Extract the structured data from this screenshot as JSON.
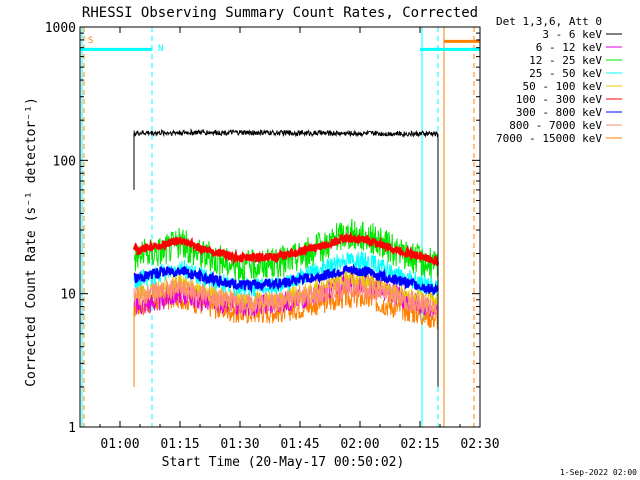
{
  "chart_data": {
    "type": "line",
    "title": "RHESSI Observing Summary Count Rates, Corrected",
    "xlabel": "Start Time (20-May-17 00:50:02)",
    "ylabel": "Corrected Count Rate (s⁻¹ detector⁻¹)",
    "yscale": "log",
    "ylim": [
      1,
      1000
    ],
    "xlim_minutes_from_start": [
      0,
      100
    ],
    "x_ticks": [
      {
        "label": "01:00",
        "minute": 10
      },
      {
        "label": "01:15",
        "minute": 25
      },
      {
        "label": "01:30",
        "minute": 40
      },
      {
        "label": "01:45",
        "minute": 55
      },
      {
        "label": "02:00",
        "minute": 70
      },
      {
        "label": "02:15",
        "minute": 85
      },
      {
        "label": "02:30",
        "minute": 100
      }
    ],
    "y_ticks": [
      {
        "label": "1",
        "value": 1
      },
      {
        "label": "10",
        "value": 10
      },
      {
        "label": "100",
        "value": 100
      },
      {
        "label": "1000",
        "value": 1000
      }
    ],
    "legend_header": "Det 1,3,6, Att 0",
    "legend_placement": "right",
    "series": [
      {
        "name": "3 - 6 keV",
        "color": "#000000",
        "x": [
          13.5,
          15,
          30,
          45,
          60,
          75,
          89.5
        ],
        "values": [
          160,
          160,
          162,
          161,
          160,
          159,
          158
        ]
      },
      {
        "name": "6 - 12 keV",
        "color": "#e100e1",
        "x": [
          13.5,
          20,
          25,
          30,
          40,
          50,
          60,
          66,
          72,
          80,
          89.5
        ],
        "values": [
          8.0,
          8.8,
          10,
          9.0,
          8.0,
          8.5,
          10,
          12,
          12,
          9.5,
          7.5
        ]
      },
      {
        "name": "12 - 25 keV",
        "color": "#00e600",
        "x": [
          13.5,
          20,
          25,
          30,
          40,
          50,
          60,
          66,
          72,
          80,
          89.5
        ],
        "values": [
          19,
          21,
          24,
          20,
          16,
          17,
          22,
          28,
          27,
          20,
          16
        ]
      },
      {
        "name": "25 - 50 keV",
        "color": "#00ffff",
        "x": [
          13.5,
          20,
          25,
          30,
          40,
          50,
          60,
          66,
          72,
          80,
          89.5
        ],
        "values": [
          12.5,
          14,
          16,
          13.5,
          11,
          11.5,
          15,
          18,
          17.5,
          13.5,
          11
        ]
      },
      {
        "name": "50 - 100 keV",
        "color": "#e6c800",
        "x": [
          13.5,
          20,
          25,
          30,
          40,
          50,
          60,
          66,
          72,
          80,
          89.5
        ],
        "values": [
          10,
          11,
          12,
          10.5,
          8.8,
          9.0,
          11,
          13,
          12.5,
          10,
          8.5
        ]
      },
      {
        "name": "100 - 300 keV",
        "color": "#ff0000",
        "x": [
          13.5,
          20,
          25,
          30,
          40,
          50,
          60,
          66,
          72,
          80,
          89.5
        ],
        "values": [
          21,
          23,
          25,
          22,
          18.5,
          19,
          22.5,
          26,
          25,
          21,
          17.5
        ]
      },
      {
        "name": "300 - 800 keV",
        "color": "#0000ff",
        "x": [
          13.5,
          20,
          25,
          30,
          40,
          50,
          60,
          66,
          72,
          80,
          89.5
        ],
        "values": [
          13,
          14.5,
          15,
          13.5,
          11.5,
          12,
          13.5,
          15,
          14.5,
          12.5,
          10.5
        ]
      },
      {
        "name": "800 - 7000 keV",
        "color": "#ff8c7a",
        "x": [
          13.5,
          20,
          25,
          30,
          40,
          50,
          60,
          66,
          72,
          80,
          89.5
        ],
        "values": [
          9.5,
          10.5,
          11,
          10,
          8.5,
          8.8,
          10,
          11,
          10.8,
          9.2,
          7.8
        ]
      },
      {
        "name": "7000 - 15000 keV",
        "color": "#ff8000",
        "x": [
          13.5,
          20,
          25,
          30,
          40,
          50,
          60,
          66,
          72,
          80,
          89.5
        ],
        "values": [
          8.0,
          9.0,
          9.5,
          8.5,
          7.2,
          7.4,
          8.5,
          9.5,
          9.2,
          7.8,
          6.5
        ]
      }
    ],
    "flag_bars": [
      {
        "label": "S",
        "label_color": "#ff8000",
        "color": "#ff8000",
        "x_range": [
          91,
          100
        ],
        "value": 780
      },
      {
        "label": "N",
        "label_color": "#00ffff",
        "color": "#00ffff",
        "x_range": [
          0,
          18
        ],
        "value": 680
      },
      {
        "label": "",
        "label_color": "#00ffff",
        "color": "#00ffff",
        "x_range": [
          85,
          100
        ],
        "value": 680
      }
    ],
    "vertical_markers": [
      {
        "minute": 0.5,
        "color": "#00ffff",
        "style": "solid"
      },
      {
        "minute": 1.0,
        "color": "#ff8000",
        "style": "dashed"
      },
      {
        "minute": 18.0,
        "color": "#00ffff",
        "style": "dashed"
      },
      {
        "minute": 85.5,
        "color": "#00ffff",
        "style": "solid"
      },
      {
        "minute": 89.5,
        "color": "#00ffff",
        "style": "dashed"
      },
      {
        "minute": 91.0,
        "color": "#ff8000",
        "style": "solid"
      },
      {
        "minute": 98.5,
        "color": "#ff8000",
        "style": "dashed"
      }
    ],
    "footer_date": "1-Sep-2022 02:00"
  }
}
